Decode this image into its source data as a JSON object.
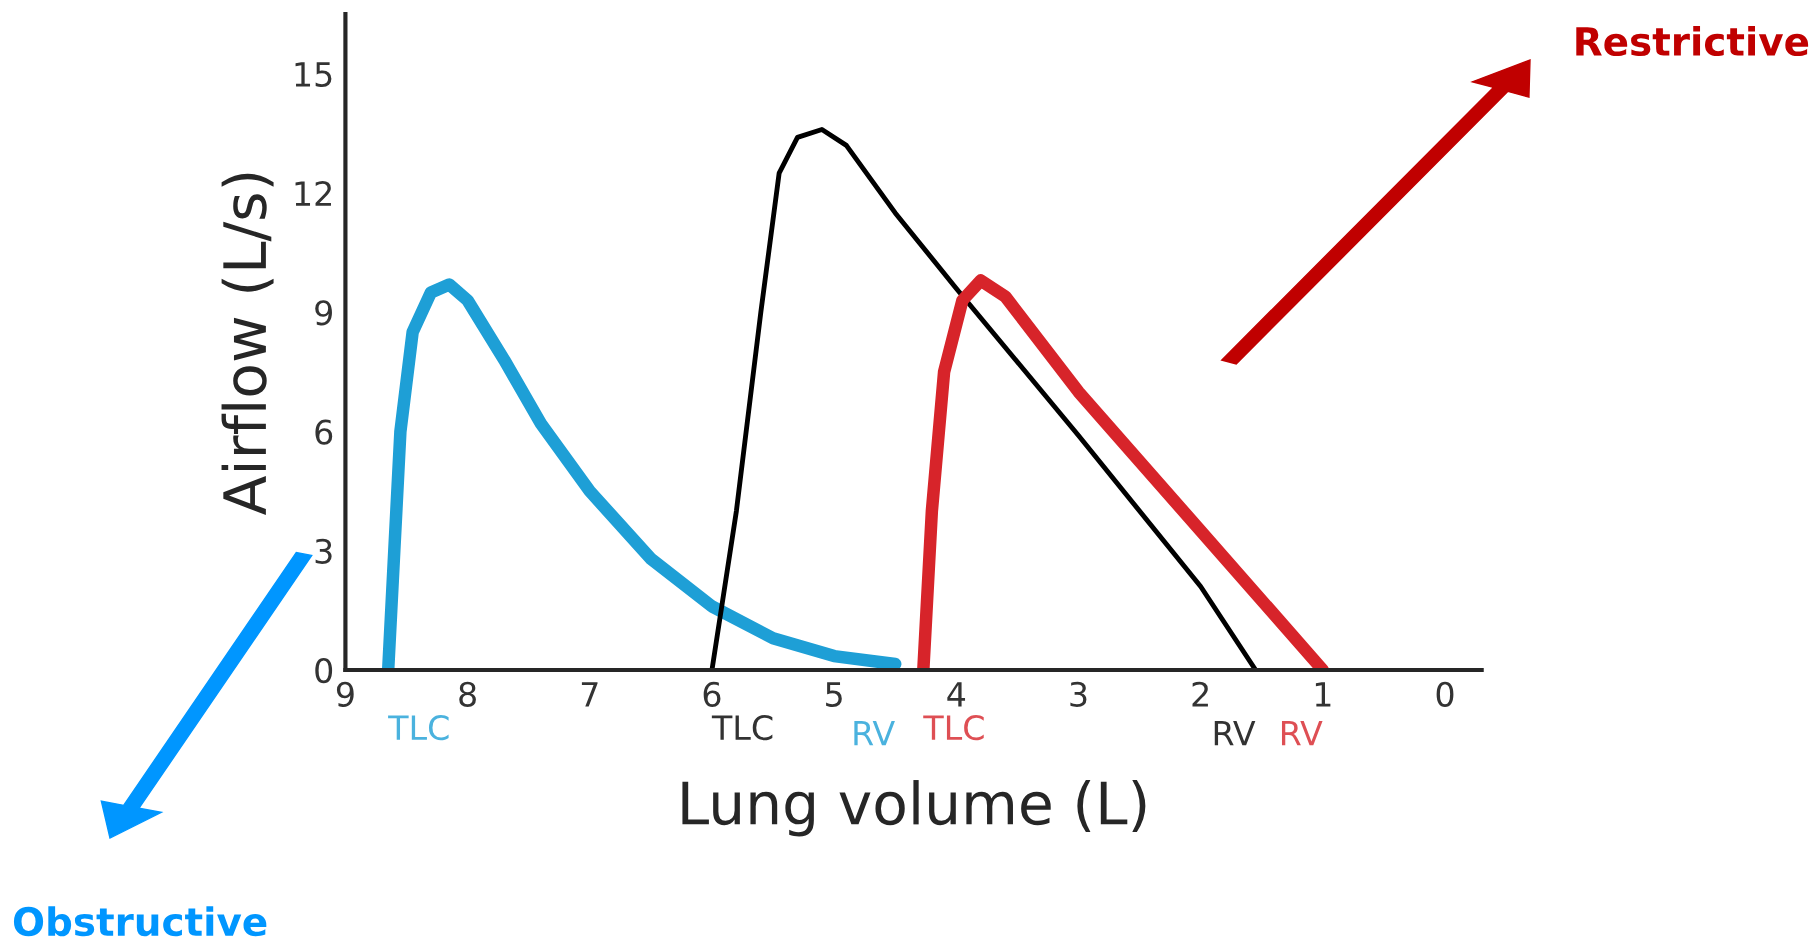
{
  "chart_data": {
    "type": "line",
    "xlabel": "Lung volume (L)",
    "ylabel": "Airflow (L/s)",
    "xlim": [
      9,
      -0.3
    ],
    "xticks": [
      9,
      8,
      7,
      6,
      5,
      4,
      3,
      2,
      1,
      0
    ],
    "ylim": [
      0,
      16.5
    ],
    "yticks": [
      0,
      3,
      6,
      9,
      12,
      15
    ],
    "grid": false,
    "series": [
      {
        "color": "#1e9fd6",
        "x": [
          8.65,
          8.6,
          8.55,
          8.45,
          8.3,
          8.15,
          8.0,
          7.7,
          7.4,
          7.0,
          6.5,
          6.0,
          5.5,
          5.0,
          4.5
        ],
        "values": [
          0,
          3,
          6,
          8.5,
          9.5,
          9.7,
          9.3,
          7.8,
          6.2,
          4.5,
          2.8,
          1.6,
          0.8,
          0.35,
          0.15
        ]
      },
      {
        "color": "#000000",
        "x": [
          6.0,
          5.8,
          5.6,
          5.45,
          5.3,
          5.1,
          4.9,
          4.5,
          4.0,
          3.0,
          2.0,
          1.55
        ],
        "values": [
          0,
          4,
          9,
          12.5,
          13.4,
          13.6,
          13.2,
          11.5,
          9.6,
          5.9,
          2.1,
          0
        ]
      },
      {
        "color": "#d7242a",
        "x": [
          4.27,
          4.2,
          4.1,
          3.95,
          3.8,
          3.6,
          3.0,
          2.0,
          1.0
        ],
        "values": [
          0,
          4,
          7.5,
          9.3,
          9.8,
          9.4,
          7.0,
          3.5,
          0
        ]
      }
    ],
    "annotations": [
      {
        "text": "TLC",
        "x": 8.65,
        "y": 0
      },
      {
        "text": "TLC",
        "x": 6.0,
        "y": 0
      },
      {
        "text": "RV",
        "x": 4.5,
        "y": 0
      },
      {
        "text": "TLC",
        "x": 4.27,
        "y": 0
      },
      {
        "text": "RV",
        "x": 1.55,
        "y": 0
      },
      {
        "text": "RV",
        "x": 1.0,
        "y": 0
      },
      "Restrictive",
      "Obstructive"
    ]
  }
}
